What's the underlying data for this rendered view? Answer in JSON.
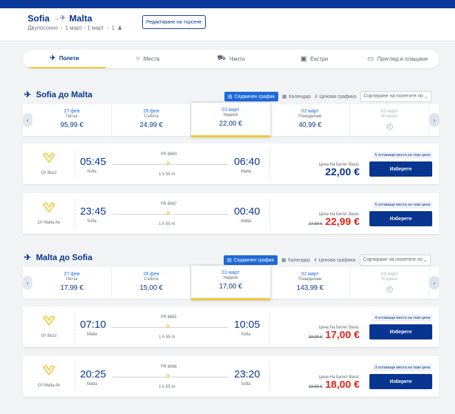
{
  "header": {
    "origin": "Sofia",
    "destination": "Malta",
    "trip_type": "Двупосочно",
    "dates": "1 март - 1 март",
    "passengers": "1",
    "edit_label": "Редактиране на търсене"
  },
  "steps": [
    {
      "label": "Полети",
      "icon": "plane-icon"
    },
    {
      "label": "Места",
      "icon": "seat-icon"
    },
    {
      "label": "Чанти",
      "icon": "bag-icon"
    },
    {
      "label": "Екстри",
      "icon": "extras-icon"
    },
    {
      "label": "Преглед и плащане",
      "icon": "card-icon"
    }
  ],
  "tools": {
    "weekly": "Седмичен график",
    "calendar": "Календар",
    "price_chart": "Ценова графика",
    "sort": "Сортиране на полетите по"
  },
  "outbound": {
    "title": "Sofia до Malta",
    "dates": [
      {
        "date": "27 фев",
        "weekday": "Петък",
        "price": "95,99 €"
      },
      {
        "date": "28 фев",
        "weekday": "Събота",
        "price": "24,99 €"
      },
      {
        "date": "01 март",
        "weekday": "Неделя",
        "price": "22,00 €"
      },
      {
        "date": "02 март",
        "weekday": "Понеделник",
        "price": "40,99 €"
      },
      {
        "date": "03 март",
        "weekday": "Вторник",
        "price": ""
      }
    ],
    "flights": [
      {
        "operator": "От Buzz",
        "dep": "05:45",
        "dep_city": "Sofia",
        "arr": "06:40",
        "arr_city": "Malta",
        "flight_no": "FR 8860",
        "duration": "1 h 55 m",
        "seats": "5 оставащи места на тази цена",
        "price_type": "Цена На Билет Basic",
        "old_price": "",
        "price": "22,00 €"
      },
      {
        "operator": "От Malta Air",
        "dep": "23:45",
        "dep_city": "Sofia",
        "arr": "00:40",
        "arr_city": "Malta",
        "flight_no": "FR 8067",
        "duration": "1 h 55 m",
        "seats": "5 оставащи места на тази цена",
        "price_type": "Цена На Билет Basic",
        "old_price": "27,99 €",
        "price": "22,99 €"
      }
    ]
  },
  "inbound": {
    "title": "Malta до Sofia",
    "dates": [
      {
        "date": "27 фев",
        "weekday": "Петък",
        "price": "17,99 €"
      },
      {
        "date": "28 фев",
        "weekday": "Събота",
        "price": "15,00 €"
      },
      {
        "date": "01 март",
        "weekday": "Неделя",
        "price": "17,00 €"
      },
      {
        "date": "02 март",
        "weekday": "Понеделник",
        "price": "143,99 €"
      },
      {
        "date": "03 март",
        "weekday": "Вторник",
        "price": ""
      }
    ],
    "flights": [
      {
        "operator": "От Buzz",
        "dep": "07:10",
        "dep_city": "Malta",
        "arr": "10:05",
        "arr_city": "Sofia",
        "flight_no": "FR 8861",
        "duration": "1 h 55 m",
        "seats": "4 оставащи места на тази цена",
        "price_type": "Цена На Билет Basic",
        "old_price": "19,99 €",
        "price": "17,00 €"
      },
      {
        "operator": "От Malta Air",
        "dep": "20:25",
        "dep_city": "Malta",
        "arr": "23:20",
        "arr_city": "Sofia",
        "flight_no": "FR 8066",
        "duration": "1 h 55 m",
        "seats": "3 оставащи места на тази цена",
        "price_type": "Цена На Билет Basic",
        "old_price": "19,99 €",
        "price": "18,00 €"
      }
    ]
  },
  "select_label": "Изберете",
  "colors": {
    "brand": "#073590",
    "accent": "#f1c933",
    "sale": "#e0251b",
    "button": "#1f6ad8"
  }
}
